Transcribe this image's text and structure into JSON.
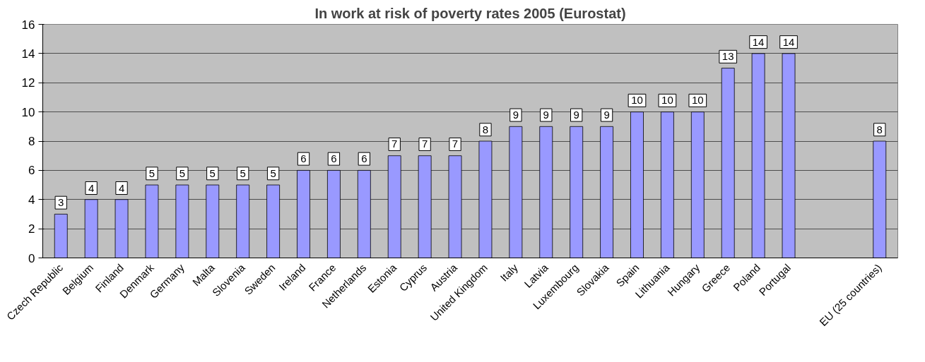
{
  "chart_data": {
    "type": "bar",
    "title": "In work at risk of poverty rates 2005 (Eurostat)",
    "categories": [
      "Czech Republic",
      "Belgium",
      "Finland",
      "Denmark",
      "Germany",
      "Malta",
      "Slovenia",
      "Sweden",
      "Ireland",
      "France",
      "Netherlands",
      "Estonia",
      "Cyprus",
      "Austria",
      "United Kingdom",
      "Italy",
      "Latvia",
      "Luxembourg",
      "Slovakia",
      "Spain",
      "Lithuania",
      "Hungary",
      "Greece",
      "Poland",
      "Portugal",
      null,
      null,
      "EU (25 countries)"
    ],
    "values": [
      3,
      4,
      4,
      5,
      5,
      5,
      5,
      5,
      6,
      6,
      6,
      7,
      7,
      7,
      8,
      9,
      9,
      9,
      9,
      10,
      10,
      10,
      13,
      14,
      14,
      null,
      null,
      8
    ],
    "color": "#9999ff",
    "ylim": [
      0,
      16
    ],
    "yticks": [
      0,
      2,
      4,
      6,
      8,
      10,
      12,
      14,
      16
    ],
    "grid": "y",
    "data_labels": true
  }
}
